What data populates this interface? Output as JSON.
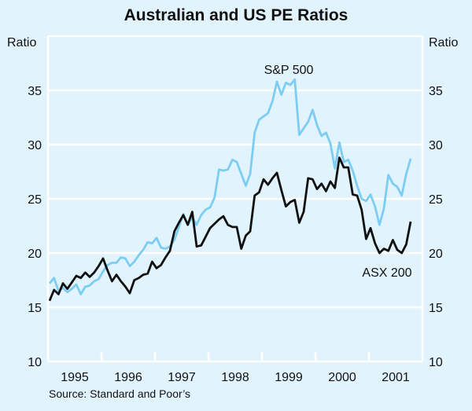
{
  "chart_data": {
    "type": "line",
    "title": "Australian and US PE Ratios",
    "ylabel_left": "Ratio",
    "ylabel_right": "Ratio",
    "ylim": [
      10,
      40
    ],
    "yticks": [
      10,
      15,
      20,
      25,
      30,
      35
    ],
    "xlim": [
      1995,
      2002
    ],
    "xtick_labels": [
      "1995",
      "1996",
      "1997",
      "1998",
      "1999",
      "2000",
      "2001"
    ],
    "x_start": 1995.03,
    "x_step_months": 1,
    "grid": true,
    "source": "Source: Standard and Poor’s",
    "series": [
      {
        "name": "S&P 500",
        "color": "#7dcdf3",
        "label_position": "top-center",
        "values": [
          17.2,
          17.7,
          16.5,
          16.8,
          16.4,
          16.7,
          17.1,
          16.2,
          16.9,
          17.0,
          17.4,
          17.6,
          18.3,
          18.9,
          19.1,
          19.1,
          19.6,
          19.5,
          18.8,
          19.2,
          19.8,
          20.3,
          21.0,
          20.9,
          21.4,
          20.5,
          20.4,
          20.6,
          21.2,
          22.4,
          23.6,
          22.6,
          23.3,
          22.6,
          23.5,
          24.0,
          24.2,
          25.1,
          27.7,
          27.6,
          27.7,
          28.6,
          28.4,
          27.3,
          26.2,
          27.3,
          31.1,
          32.3,
          32.6,
          32.9,
          34.0,
          35.8,
          34.6,
          35.7,
          35.5,
          36.0,
          30.9,
          31.5,
          32.1,
          33.2,
          31.8,
          30.8,
          31.1,
          30.1,
          27.8,
          30.2,
          28.4,
          28.6,
          27.6,
          26.2,
          25.0,
          24.8,
          25.4,
          24.3,
          22.6,
          24.1,
          27.2,
          26.4,
          26.1,
          25.3,
          27.3,
          28.7
        ]
      },
      {
        "name": "ASX 200",
        "color": "#111111",
        "label_position": "bottom-right",
        "values": [
          15.6,
          16.6,
          16.2,
          17.2,
          16.7,
          17.3,
          17.9,
          17.7,
          18.2,
          17.8,
          18.2,
          18.8,
          19.5,
          18.4,
          17.4,
          18.0,
          17.4,
          16.9,
          16.3,
          17.5,
          17.7,
          18.0,
          18.1,
          19.2,
          18.6,
          18.9,
          19.6,
          20.2,
          22.0,
          22.8,
          23.5,
          22.6,
          23.8,
          20.6,
          20.7,
          21.5,
          22.3,
          22.7,
          23.1,
          23.4,
          22.6,
          22.4,
          22.4,
          20.4,
          21.6,
          22.0,
          25.3,
          25.6,
          26.8,
          26.3,
          26.9,
          27.4,
          25.8,
          24.3,
          24.7,
          24.9,
          22.8,
          23.8,
          26.9,
          26.8,
          25.9,
          26.4,
          25.7,
          26.6,
          26.0,
          28.8,
          27.9,
          27.9,
          25.4,
          25.3,
          24.0,
          21.3,
          22.3,
          20.9,
          20.0,
          20.4,
          20.2,
          21.2,
          20.3,
          20.0,
          20.8,
          22.9
        ]
      }
    ]
  }
}
